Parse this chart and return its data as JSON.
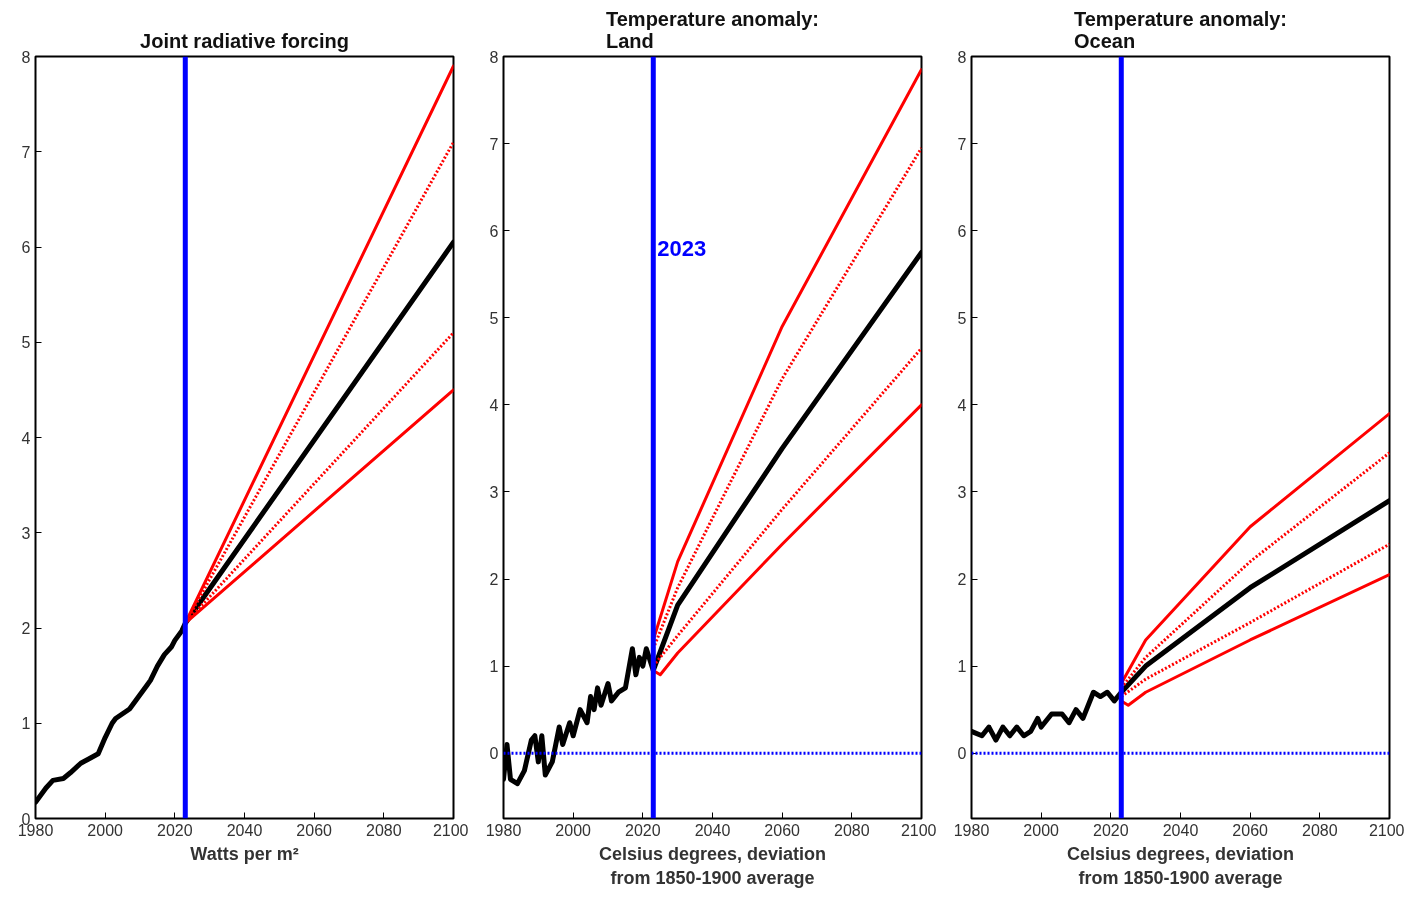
{
  "chart_data": [
    {
      "type": "line",
      "title": "Joint radiative forcing",
      "xlabel": "Watts per m²",
      "xlim": [
        1980,
        2100
      ],
      "ylim": [
        0,
        8
      ],
      "xticks": [
        1980,
        2000,
        2020,
        2040,
        2060,
        2080,
        2100
      ],
      "yticks": [
        0,
        1,
        2,
        3,
        4,
        5,
        6,
        7,
        8
      ],
      "grid": false,
      "ref_lines": [
        {
          "axis": "x",
          "value": 2023,
          "color": "#0000ff",
          "line_style": "solid"
        }
      ],
      "series": [
        {
          "color": "#000000",
          "x": [
            1980,
            1983,
            1985,
            1988,
            1990,
            1993,
            1995,
            1998,
            2000,
            2002,
            2003,
            2005,
            2007,
            2009,
            2010,
            2012,
            2013,
            2015,
            2017,
            2019,
            2020,
            2022,
            2023,
            2100
          ],
          "values": [
            0.17,
            0.32,
            0.4,
            0.42,
            0.48,
            0.58,
            0.62,
            0.68,
            0.85,
            1.0,
            1.05,
            1.1,
            1.15,
            1.25,
            1.3,
            1.4,
            1.45,
            1.6,
            1.72,
            1.8,
            1.87,
            1.97,
            2.05,
            6.05
          ]
        },
        {
          "color": "#ff0000",
          "line_style": "solid",
          "x": [
            2023,
            2100
          ],
          "values": [
            2.05,
            7.9
          ]
        },
        {
          "color": "#ff0000",
          "line_style": "dotted",
          "x": [
            2023,
            2100
          ],
          "values": [
            2.05,
            7.1
          ]
        },
        {
          "color": "#ff0000",
          "line_style": "dotted",
          "x": [
            2023,
            2100
          ],
          "values": [
            2.05,
            5.1
          ]
        },
        {
          "color": "#ff0000",
          "line_style": "solid",
          "x": [
            2023,
            2100
          ],
          "values": [
            2.05,
            4.5
          ]
        }
      ]
    },
    {
      "type": "line",
      "title": "Temperature anomaly: Land",
      "xlabel": "Celsius degrees, deviation from 1850-1900 average",
      "xlim": [
        1980,
        2100
      ],
      "ylim": [
        -0.75,
        8
      ],
      "xticks": [
        1980,
        2000,
        2020,
        2040,
        2060,
        2080,
        2100
      ],
      "yticks": [
        0,
        1,
        2,
        3,
        4,
        5,
        6,
        7,
        8
      ],
      "grid": false,
      "annotations": [
        {
          "text": "2023",
          "x": 2023,
          "y": 5.8
        }
      ],
      "ref_lines": [
        {
          "axis": "x",
          "value": 2023,
          "color": "#0000ff",
          "line_style": "solid"
        },
        {
          "axis": "y",
          "value": 0,
          "color": "#0000ff",
          "line_style": "dotted"
        }
      ],
      "series": [
        {
          "color": "#000000",
          "x": [
            1980,
            1981,
            1982,
            1984,
            1986,
            1988,
            1989,
            1990,
            1991,
            1992,
            1994,
            1996,
            1997,
            1999,
            2000,
            2002,
            2004,
            2005,
            2006,
            2007,
            2008,
            2010,
            2011,
            2013,
            2015,
            2017,
            2018,
            2019,
            2020,
            2021,
            2023,
            2030,
            2060,
            2100
          ],
          "values": [
            -0.3,
            0.1,
            -0.3,
            -0.35,
            -0.2,
            0.15,
            0.2,
            -0.1,
            0.2,
            -0.25,
            -0.1,
            0.3,
            0.1,
            0.35,
            0.2,
            0.5,
            0.35,
            0.65,
            0.5,
            0.75,
            0.55,
            0.8,
            0.6,
            0.7,
            0.75,
            1.2,
            0.9,
            1.1,
            1.0,
            1.2,
            0.95,
            1.7,
            3.5,
            5.75
          ]
        },
        {
          "color": "#ff0000",
          "line_style": "solid",
          "x": [
            2023,
            2030,
            2060,
            2100
          ],
          "values": [
            1.3,
            2.2,
            4.9,
            7.85
          ]
        },
        {
          "color": "#ff0000",
          "line_style": "dotted",
          "x": [
            2023,
            2030,
            2060,
            2100
          ],
          "values": [
            1.2,
            1.9,
            4.3,
            6.95
          ]
        },
        {
          "color": "#ff0000",
          "line_style": "dotted",
          "x": [
            2023,
            2030,
            2060,
            2100
          ],
          "values": [
            1.0,
            1.35,
            2.8,
            4.65
          ]
        },
        {
          "color": "#ff0000",
          "line_style": "solid",
          "x": [
            2023,
            2025,
            2030,
            2060,
            2100
          ],
          "values": [
            0.95,
            0.9,
            1.15,
            2.4,
            4.0
          ]
        }
      ]
    },
    {
      "type": "line",
      "title": "Temperature anomaly: Ocean",
      "xlabel": "Celsius degrees, deviation from 1850-1900 average",
      "xlim": [
        1980,
        2100
      ],
      "ylim": [
        -0.75,
        8
      ],
      "xticks": [
        1980,
        2000,
        2020,
        2040,
        2060,
        2080,
        2100
      ],
      "yticks": [
        0,
        1,
        2,
        3,
        4,
        5,
        6,
        7,
        8
      ],
      "grid": false,
      "ref_lines": [
        {
          "axis": "x",
          "value": 2023,
          "color": "#0000ff",
          "line_style": "solid"
        },
        {
          "axis": "y",
          "value": 0,
          "color": "#0000ff",
          "line_style": "dotted"
        }
      ],
      "series": [
        {
          "color": "#000000",
          "x": [
            1980,
            1983,
            1985,
            1987,
            1989,
            1991,
            1993,
            1995,
            1997,
            1999,
            2000,
            2003,
            2006,
            2008,
            2010,
            2012,
            2015,
            2017,
            2019,
            2021,
            2023,
            2030,
            2060,
            2100
          ],
          "values": [
            0.25,
            0.2,
            0.3,
            0.15,
            0.3,
            0.2,
            0.3,
            0.2,
            0.25,
            0.4,
            0.3,
            0.45,
            0.45,
            0.35,
            0.5,
            0.4,
            0.7,
            0.65,
            0.7,
            0.6,
            0.7,
            1.0,
            1.9,
            2.9
          ]
        },
        {
          "color": "#ff0000",
          "line_style": "solid",
          "x": [
            2023,
            2030,
            2060,
            2100
          ],
          "values": [
            0.8,
            1.3,
            2.6,
            3.9
          ]
        },
        {
          "color": "#ff0000",
          "line_style": "dotted",
          "x": [
            2023,
            2030,
            2060,
            2100
          ],
          "values": [
            0.75,
            1.1,
            2.2,
            3.45
          ]
        },
        {
          "color": "#ff0000",
          "line_style": "dotted",
          "x": [
            2023,
            2030,
            2060,
            2100
          ],
          "values": [
            0.65,
            0.85,
            1.5,
            2.4
          ]
        },
        {
          "color": "#ff0000",
          "line_style": "solid",
          "x": [
            2023,
            2025,
            2030,
            2060,
            2100
          ],
          "values": [
            0.6,
            0.55,
            0.7,
            1.3,
            2.05
          ]
        }
      ]
    }
  ]
}
